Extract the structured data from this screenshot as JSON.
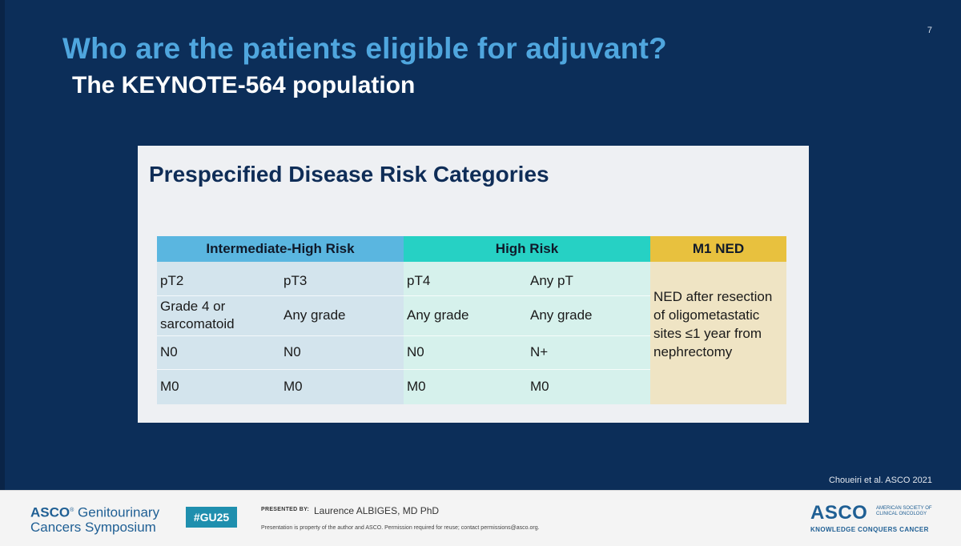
{
  "slide": {
    "number": "7",
    "title": "Who are the patients eligible for adjuvant?",
    "subtitle": "The KEYNOTE-564 population",
    "citation": "Choueiri et al. ASCO 2021"
  },
  "panel": {
    "title": "Prespecified Disease Risk Categories",
    "headers": {
      "intermediate_high": "Intermediate-High Risk",
      "high": "High Risk",
      "m1": "M1 NED"
    },
    "rows": [
      {
        "ih1": "pT2",
        "ih2": "pT3",
        "h1": "pT4",
        "h2": "Any pT"
      },
      {
        "ih1": "Grade 4 or sarcomatoid",
        "ih2": "Any grade",
        "h1": "Any grade",
        "h2": "Any grade"
      },
      {
        "ih1": "N0",
        "ih2": "N0",
        "h1": "N0",
        "h2": "N+"
      },
      {
        "ih1": "M0",
        "ih2": "M0",
        "h1": "M0",
        "h2": "M0"
      }
    ],
    "m1_text": "NED after resection of oligometastatic sites ≤1 year from nephrectomy"
  },
  "footer": {
    "symposium_brand": "ASCO",
    "symposium_name_1": "Genitourinary",
    "symposium_name_2": "Cancers Symposium",
    "hashtag": "#GU25",
    "presented_by_label": "PRESENTED BY:",
    "presenter": "Laurence ALBIGES, MD PhD",
    "disclaimer": "Presentation is property of the author and ASCO. Permission required for reuse; contact permissions@asco.org.",
    "asco_logo": "ASCO",
    "asco_society": "AMERICAN SOCIETY OF CLINICAL ONCOLOGY",
    "asco_tagline": "KNOWLEDGE CONQUERS CANCER"
  },
  "colors": {
    "slide_bg": "#0c2e59",
    "title": "#4fa6de",
    "intermediate_high": "#5ab6e0",
    "high": "#26d1c4",
    "m1": "#e8c13e"
  }
}
